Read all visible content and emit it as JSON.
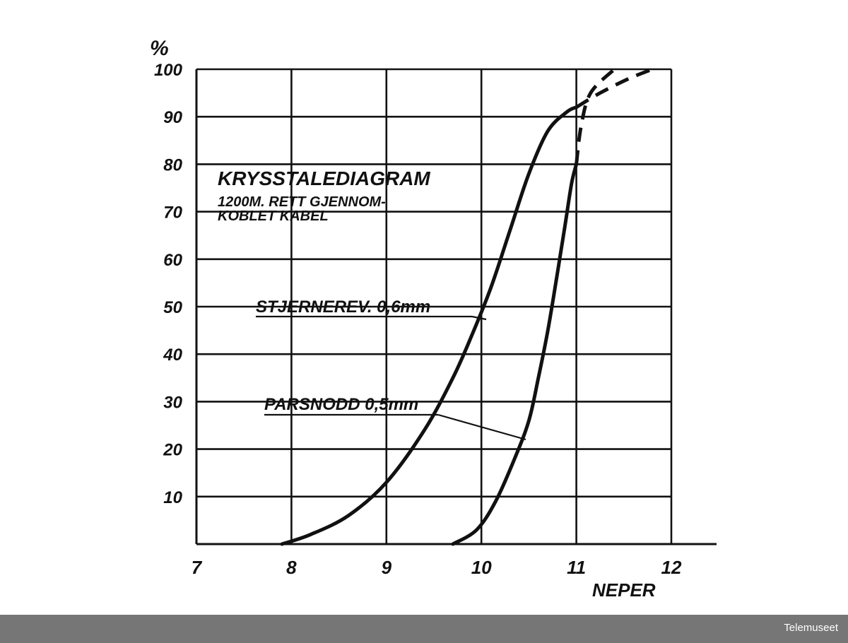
{
  "chart_data": {
    "type": "line",
    "title": "KRYSSTALEDIAGRAM",
    "subtitle_lines": [
      "1200M. RETT GJENNOM-",
      "KOBLET KABEL"
    ],
    "xlabel": "NEPER",
    "ylabel": "%",
    "xlim": [
      7,
      12
    ],
    "ylim": [
      0,
      100
    ],
    "x_ticks": [
      "7",
      "8",
      "9",
      "10",
      "11",
      "12"
    ],
    "y_ticks": [
      "10",
      "20",
      "30",
      "40",
      "50",
      "60",
      "70",
      "80",
      "90",
      "100"
    ],
    "grid": true,
    "series": [
      {
        "name": "STJERNEREV. 0,6mm",
        "x": [
          7.9,
          8.2,
          8.6,
          9.0,
          9.4,
          9.7,
          9.9,
          10.1,
          10.3,
          10.5,
          10.7,
          10.9,
          11.0
        ],
        "y": [
          0,
          2,
          6,
          13,
          24,
          35,
          44,
          54,
          66,
          78,
          87,
          91,
          92
        ],
        "extension_dashed": {
          "x": [
            11.0,
            11.25,
            11.55,
            11.8
          ],
          "y": [
            92,
            95,
            98,
            100
          ]
        }
      },
      {
        "name": "PARSNODD 0,5mm",
        "x": [
          9.7,
          9.95,
          10.15,
          10.35,
          10.5,
          10.6,
          10.7,
          10.8,
          10.88,
          10.95,
          11.0
        ],
        "y": [
          0,
          3,
          9,
          18,
          26,
          35,
          45,
          57,
          67,
          76,
          80
        ],
        "extension_dashed": {
          "x": [
            11.0,
            11.05,
            11.15,
            11.4
          ],
          "y": [
            80,
            88,
            95,
            100
          ]
        }
      }
    ]
  },
  "footer": {
    "watermark": "Telemuseet"
  }
}
